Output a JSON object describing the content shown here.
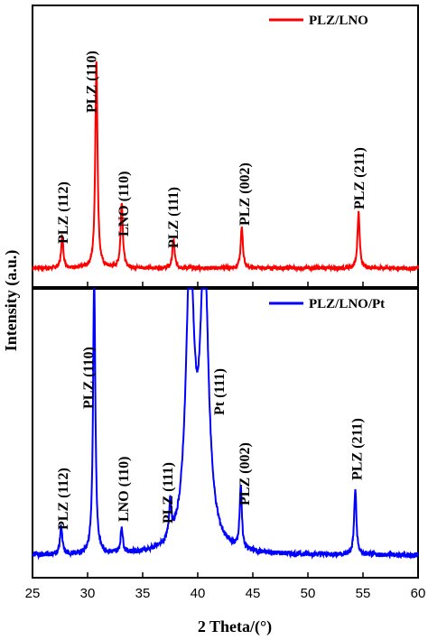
{
  "chart_data": [
    {
      "type": "line",
      "panel": "top",
      "xlim": [
        25,
        60
      ],
      "series": [
        {
          "name": "PLZ/LNO",
          "color": "#ff0000",
          "baseline": 0.08,
          "peaks": [
            {
              "x": 27.7,
              "y": 0.15
            },
            {
              "x": 30.8,
              "y": 1.0
            },
            {
              "x": 33.1,
              "y": 0.32
            },
            {
              "x": 37.8,
              "y": 0.14
            },
            {
              "x": 44.0,
              "y": 0.2
            },
            {
              "x": 54.6,
              "y": 0.27
            }
          ]
        }
      ],
      "annotations": [
        {
          "text": "PLZ (112)",
          "x": 27.7
        },
        {
          "text": "PLZ (110)",
          "x": 30.3
        },
        {
          "text": "LNO (110)",
          "x": 33.2
        },
        {
          "text": "PLZ (111)",
          "x": 37.7
        },
        {
          "text": "PLZ (002)",
          "x": 44.2
        },
        {
          "text": "PLZ (211)",
          "x": 54.6
        }
      ],
      "legend": "top-right"
    },
    {
      "type": "line",
      "panel": "bottom",
      "xlim": [
        25,
        60
      ],
      "series": [
        {
          "name": "PLZ/LNO/Pt",
          "color": "#0000ff",
          "baseline": 0.05,
          "peaks": [
            {
              "x": 27.6,
              "y": 0.1
            },
            {
              "x": 30.6,
              "y": 1.0
            },
            {
              "x": 33.1,
              "y": 0.09
            },
            {
              "x": 37.5,
              "y": 0.13
            },
            {
              "x": 39.3,
              "y": 1.0
            },
            {
              "x": 40.6,
              "y": 1.0
            },
            {
              "x": 43.9,
              "y": 0.22
            },
            {
              "x": 54.3,
              "y": 0.23
            }
          ]
        }
      ],
      "annotations": [
        {
          "text": "PLZ (112)",
          "x": 27.7
        },
        {
          "text": "PLZ (110)",
          "x": 30.0
        },
        {
          "text": "LNO (110)",
          "x": 33.2
        },
        {
          "text": "PLZ (111)",
          "x": 37.2
        },
        {
          "text": "Pt (111)",
          "x": 41.9
        },
        {
          "text": "PLZ (002)",
          "x": 44.2
        },
        {
          "text": "PLZ (211)",
          "x": 54.4
        }
      ],
      "legend": "top-right"
    }
  ],
  "axes": {
    "xlabel": "2 Theta/(°)",
    "ylabel": "Intensity (a.u.)",
    "xticks": [
      "25",
      "30",
      "35",
      "40",
      "45",
      "50",
      "55",
      "60"
    ]
  }
}
